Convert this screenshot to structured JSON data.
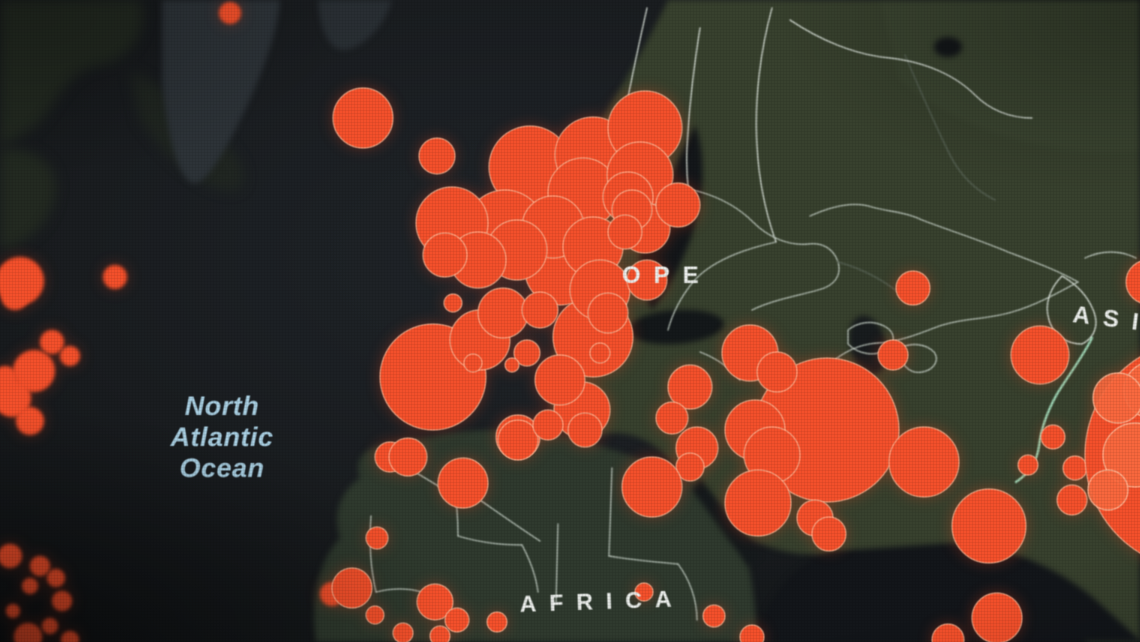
{
  "scene": {
    "kind": "world-map-dashboard-on-screen",
    "labels": {
      "ocean_line1": "North",
      "ocean_line2": "Atlantic",
      "ocean_line3": "Ocean",
      "europe_partial": "OPE",
      "asia_partial": "ASI",
      "africa": "AFRICA"
    },
    "colors": {
      "ocean1": "#1d2124",
      "ocean2": "#14171a",
      "land": "#38412e",
      "land2": "#2f3a2e",
      "land_gray": "#2d3338",
      "land_na": "#232a21",
      "land_ne": "#3e4833",
      "border": "#c8d3c9",
      "border_bright": "#e2eae2",
      "border_teal": "#a5e0bf",
      "border_faint": "#566153",
      "marker_fill": "#f3502b",
      "marker_light": "#f9693f",
      "marker_stroke": "#ffbe9c",
      "ocean_label": "#a9cfe2",
      "map_label": "#ecefec"
    }
  },
  "markers": [
    [
      230,
      13,
      11,
      "s"
    ],
    [
      20,
      281,
      24,
      "s"
    ],
    [
      115,
      277,
      12,
      "s"
    ],
    [
      15,
      296,
      14,
      "s"
    ],
    [
      52,
      342,
      12,
      "s"
    ],
    [
      34,
      371,
      21,
      "s"
    ],
    [
      70,
      356,
      10,
      "s"
    ],
    [
      12,
      398,
      19,
      "s"
    ],
    [
      30,
      421,
      14,
      "s"
    ],
    [
      5,
      378,
      12,
      "s"
    ],
    [
      332,
      594,
      12,
      "s"
    ],
    [
      10,
      556,
      12,
      "s"
    ],
    [
      40,
      566,
      10,
      "s"
    ],
    [
      30,
      586,
      8,
      "s"
    ],
    [
      56,
      578,
      9,
      "s"
    ],
    [
      62,
      601,
      10,
      "s"
    ],
    [
      13,
      611,
      7,
      "s"
    ],
    [
      50,
      626,
      8,
      "s"
    ],
    [
      28,
      637,
      14,
      "s"
    ],
    [
      70,
      640,
      9,
      "s"
    ],
    [
      363,
      118,
      30
    ],
    [
      437,
      156,
      18
    ],
    [
      913,
      288,
      17
    ],
    [
      893,
      355,
      15
    ],
    [
      1040,
      355,
      29
    ],
    [
      1053,
      437,
      12
    ],
    [
      1028,
      465,
      10
    ],
    [
      1075,
      468,
      12
    ],
    [
      1072,
      500,
      15
    ],
    [
      1148,
      282,
      22
    ],
    [
      433,
      377,
      53
    ],
    [
      530,
      167,
      41
    ],
    [
      505,
      230,
      40
    ],
    [
      593,
      337,
      40
    ],
    [
      593,
      155,
      38
    ],
    [
      645,
      128,
      37
    ],
    [
      452,
      223,
      36
    ],
    [
      583,
      193,
      35
    ],
    [
      560,
      270,
      35
    ],
    [
      640,
      175,
      33
    ],
    [
      553,
      227,
      31
    ],
    [
      517,
      250,
      30
    ],
    [
      593,
      247,
      30
    ],
    [
      600,
      290,
      30
    ],
    [
      480,
      340,
      30
    ],
    [
      582,
      410,
      28
    ],
    [
      478,
      260,
      28
    ],
    [
      628,
      197,
      25
    ],
    [
      645,
      228,
      25
    ],
    [
      503,
      313,
      25
    ],
    [
      560,
      380,
      25
    ],
    [
      678,
      205,
      22
    ],
    [
      445,
      255,
      22
    ],
    [
      518,
      437,
      22
    ],
    [
      632,
      210,
      20
    ],
    [
      647,
      280,
      20
    ],
    [
      608,
      313,
      20
    ],
    [
      540,
      310,
      18
    ],
    [
      625,
      232,
      17
    ],
    [
      390,
      457,
      15
    ],
    [
      527,
      353,
      13
    ],
    [
      470,
      473,
      12
    ],
    [
      600,
      353,
      10
    ],
    [
      453,
      303,
      9
    ],
    [
      473,
      363,
      9
    ],
    [
      512,
      365,
      7
    ],
    [
      408,
      457,
      19
    ],
    [
      463,
      483,
      25
    ],
    [
      518,
      440,
      20
    ],
    [
      548,
      425,
      15
    ],
    [
      585,
      430,
      17
    ],
    [
      377,
      538,
      11
    ],
    [
      352,
      588,
      20
    ],
    [
      435,
      602,
      18
    ],
    [
      457,
      620,
      12
    ],
    [
      497,
      622,
      10
    ],
    [
      375,
      615,
      9
    ],
    [
      403,
      633,
      10
    ],
    [
      440,
      636,
      10
    ],
    [
      644,
      592,
      9
    ],
    [
      714,
      616,
      11
    ],
    [
      752,
      637,
      12
    ],
    [
      827,
      430,
      72
    ],
    [
      750,
      353,
      28
    ],
    [
      777,
      372,
      20
    ],
    [
      755,
      430,
      30
    ],
    [
      772,
      455,
      28
    ],
    [
      758,
      503,
      33
    ],
    [
      815,
      518,
      18
    ],
    [
      690,
      387,
      22
    ],
    [
      672,
      418,
      16
    ],
    [
      697,
      448,
      21
    ],
    [
      690,
      467,
      14
    ],
    [
      652,
      487,
      30
    ],
    [
      829,
      534,
      17
    ],
    [
      924,
      462,
      35
    ],
    [
      989,
      526,
      37
    ],
    [
      948,
      640,
      16
    ],
    [
      997,
      618,
      25
    ],
    [
      1200,
      455,
      115
    ],
    [
      1152,
      390,
      28,
      "l"
    ],
    [
      1118,
      398,
      25,
      "l"
    ],
    [
      1135,
      455,
      32,
      "l"
    ],
    [
      1108,
      490,
      20,
      "l"
    ]
  ]
}
